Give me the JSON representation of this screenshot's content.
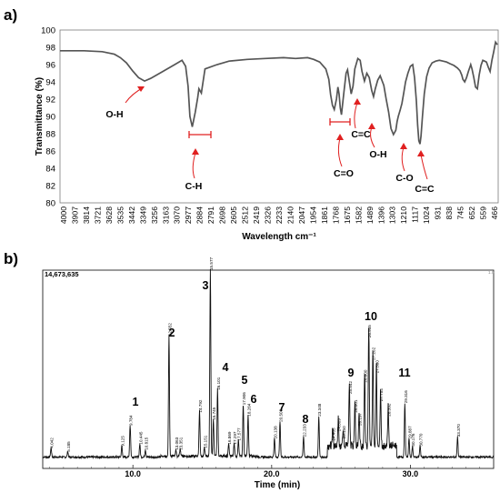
{
  "panel_a_label": "a)",
  "panel_b_label": "b)",
  "chart_data": [
    {
      "type": "line",
      "ylabel": "Transmittance (%)",
      "xlabel": "Wavelength cm⁻¹",
      "ylim": [
        80,
        100
      ],
      "xlim": [
        4000,
        373
      ],
      "yticks": [
        80,
        82,
        84,
        86,
        88,
        90,
        92,
        94,
        96,
        98,
        100
      ],
      "xtick_labels": [
        "4000",
        "3907",
        "3814",
        "3721",
        "3628",
        "3535",
        "3442",
        "3349",
        "3256",
        "3163",
        "3070",
        "2977",
        "2884",
        "2791",
        "2698",
        "2605",
        "2512",
        "2419",
        "2326",
        "2233",
        "2140",
        "2047",
        "1954",
        "1861",
        "1768",
        "1675",
        "1582",
        "1489",
        "1396",
        "1303",
        "1210",
        "1117",
        "1024",
        "931",
        "838",
        "745",
        "652",
        "559",
        "466"
      ],
      "grid": false,
      "x": [
        4000,
        3800,
        3650,
        3550,
        3500,
        3450,
        3400,
        3350,
        3300,
        3250,
        3150,
        3050,
        2990,
        2960,
        2940,
        2925,
        2905,
        2880,
        2860,
        2850,
        2830,
        2800,
        2700,
        2600,
        2450,
        2300,
        2150,
        2050,
        1950,
        1900,
        1850,
        1800,
        1775,
        1760,
        1745,
        1730,
        1712,
        1700,
        1690,
        1680,
        1670,
        1650,
        1632,
        1620,
        1605,
        1590,
        1575,
        1560,
        1535,
        1515,
        1500,
        1480,
        1460,
        1440,
        1420,
        1405,
        1390,
        1370,
        1350,
        1320,
        1300,
        1280,
        1260,
        1240,
        1220,
        1210,
        1200,
        1185,
        1170,
        1155,
        1140,
        1120,
        1100,
        1080,
        1065,
        1050,
        1040,
        1030,
        1020,
        1012,
        1000,
        985,
        965,
        945,
        920,
        890,
        860,
        830,
        800,
        770,
        740,
        710,
        690,
        675,
        665,
        650,
        635,
        620,
        605,
        600,
        590,
        575,
        560,
        545,
        530,
        515,
        500,
        485,
        470,
        455,
        440,
        425,
        410,
        395,
        380
      ],
      "y": [
        97.6,
        97.6,
        97.5,
        97.2,
        96.8,
        96.2,
        95.3,
        94.5,
        94.1,
        94.4,
        95.2,
        96.0,
        96.5,
        95.8,
        93.5,
        90.0,
        88.8,
        90.5,
        92.2,
        93.2,
        92.7,
        95.5,
        96.0,
        96.4,
        96.6,
        96.7,
        96.8,
        96.7,
        96.8,
        96.6,
        96.3,
        95.5,
        94.3,
        92.5,
        91.3,
        90.8,
        92.0,
        93.4,
        92.6,
        91.0,
        90.2,
        92.8,
        95.0,
        95.4,
        94.0,
        92.6,
        93.5,
        95.5,
        96.7,
        96.5,
        95.2,
        94.1,
        95.0,
        94.5,
        93.0,
        92.3,
        93.2,
        94.2,
        94.7,
        93.6,
        92.0,
        90.5,
        88.6,
        87.9,
        88.4,
        89.4,
        90.0,
        90.7,
        91.5,
        92.7,
        94.0,
        95.0,
        95.8,
        96.0,
        94.5,
        91.8,
        89.0,
        87.2,
        86.8,
        87.7,
        90.0,
        92.6,
        94.6,
        95.6,
        96.2,
        96.4,
        96.5,
        96.4,
        96.3,
        96.1,
        95.9,
        95.6,
        95.3,
        94.8,
        94.3,
        94.0,
        94.5,
        95.2,
        95.8,
        96.0,
        95.5,
        94.5,
        93.4,
        93.2,
        94.8,
        95.9,
        96.5,
        96.4,
        96.3,
        95.7,
        95.2,
        96.5,
        97.5,
        98.6,
        98.3
      ],
      "annotations": [
        "O-H",
        "C-H",
        "C=O",
        "C=C",
        "O-H",
        "C-O",
        "C=C"
      ]
    },
    {
      "type": "line",
      "xlabel": "Time (min)",
      "xlim": [
        3.5,
        36.0
      ],
      "xtick_labels": [
        "10.0",
        "20.0",
        "30.0"
      ],
      "ytop_label": "14,673,635",
      "corner_label": "1.0",
      "peak_numbers": [
        "1",
        "2",
        "3",
        "4",
        "5",
        "6",
        "7",
        "8",
        "9",
        "10",
        "11"
      ],
      "peaks": [
        {
          "t": 4.1,
          "h": 0.05,
          "rt": "4.042"
        },
        {
          "t": 5.3,
          "h": 0.03,
          "rt": "5.185"
        },
        {
          "t": 9.2,
          "h": 0.06,
          "rt": "9.125"
        },
        {
          "t": 9.8,
          "h": 0.17,
          "rt": "9.784"
        },
        {
          "t": 10.5,
          "h": 0.07,
          "rt": "10.445"
        },
        {
          "t": 10.9,
          "h": 0.04,
          "rt": "10.815"
        },
        {
          "t": 12.6,
          "h": 0.65,
          "rt": "12.552"
        },
        {
          "t": 13.1,
          "h": 0.04,
          "rt": "13.063"
        },
        {
          "t": 13.4,
          "h": 0.04,
          "rt": "13.351"
        },
        {
          "t": 14.8,
          "h": 0.24,
          "rt": "14.792"
        },
        {
          "t": 15.15,
          "h": 0.05,
          "rt": "15.151"
        },
        {
          "t": 15.58,
          "h": 1.0,
          "rt": "15.577"
        },
        {
          "t": 15.8,
          "h": 0.2,
          "rt": "15.745"
        },
        {
          "t": 16.1,
          "h": 0.36,
          "rt": "16.101"
        },
        {
          "t": 16.9,
          "h": 0.07,
          "rt": "16.869"
        },
        {
          "t": 17.3,
          "h": 0.07,
          "rt": "17.297"
        },
        {
          "t": 17.6,
          "h": 0.09,
          "rt": "17.577"
        },
        {
          "t": 17.95,
          "h": 0.28,
          "rt": "17.906"
        },
        {
          "t": 18.3,
          "h": 0.22,
          "rt": "18.264"
        },
        {
          "t": 20.2,
          "h": 0.1,
          "rt": "20.138"
        },
        {
          "t": 20.6,
          "h": 0.19,
          "rt": "20.508"
        },
        {
          "t": 22.3,
          "h": 0.11,
          "rt": "22.233"
        },
        {
          "t": 23.4,
          "h": 0.22,
          "rt": "23.348"
        },
        {
          "t": 24.4,
          "h": 0.09,
          "rt": "24.405"
        },
        {
          "t": 24.8,
          "h": 0.14,
          "rt": "24.809"
        },
        {
          "t": 25.15,
          "h": 0.1,
          "rt": "25.150"
        },
        {
          "t": 25.6,
          "h": 0.34,
          "rt": "25.542"
        },
        {
          "t": 26.0,
          "h": 0.24,
          "rt": "26.001"
        },
        {
          "t": 26.3,
          "h": 0.17,
          "rt": "26.197"
        },
        {
          "t": 26.7,
          "h": 0.4,
          "rt": "26.600"
        },
        {
          "t": 27.0,
          "h": 0.64,
          "rt": "26.955"
        },
        {
          "t": 27.3,
          "h": 0.52,
          "rt": "27.282"
        },
        {
          "t": 27.55,
          "h": 0.45,
          "rt": "27.580"
        },
        {
          "t": 27.85,
          "h": 0.3,
          "rt": "27.754"
        },
        {
          "t": 28.4,
          "h": 0.22,
          "rt": "28.392"
        },
        {
          "t": 29.6,
          "h": 0.29,
          "rt": "29.316"
        },
        {
          "t": 29.9,
          "h": 0.1,
          "rt": "29.887"
        },
        {
          "t": 30.15,
          "h": 0.06,
          "rt": "30.176"
        },
        {
          "t": 30.7,
          "h": 0.06,
          "rt": "30.770"
        },
        {
          "t": 33.4,
          "h": 0.11,
          "rt": "33.370"
        }
      ]
    }
  ]
}
